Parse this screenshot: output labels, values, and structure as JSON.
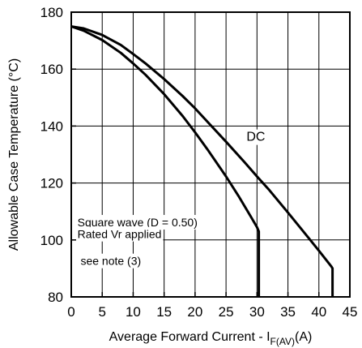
{
  "chart_data": {
    "type": "line",
    "xlabel": "Average Forward Current - I",
    "xlabel_sub": "F(AV)",
    "xlabel_unit": "(A)",
    "ylabel": "Allowable Case Temperature (°C)",
    "xlim": [
      0,
      45
    ],
    "ylim": [
      80,
      180
    ],
    "xticks": [
      "0",
      "5",
      "10",
      "15",
      "20",
      "25",
      "30",
      "35",
      "40",
      "45"
    ],
    "yticks": [
      "80",
      "100",
      "120",
      "140",
      "160",
      "180"
    ],
    "grid": true,
    "series": [
      {
        "name": "DC",
        "color": "#000000",
        "points": [
          [
            0,
            175
          ],
          [
            2,
            174.3
          ],
          [
            5,
            172
          ],
          [
            8,
            168.5
          ],
          [
            10,
            165.3
          ],
          [
            12,
            162
          ],
          [
            15,
            156.5
          ],
          [
            18,
            150.5
          ],
          [
            20,
            146.2
          ],
          [
            22,
            141.5
          ],
          [
            25,
            134.5
          ],
          [
            28,
            127.3
          ],
          [
            30,
            122.3
          ],
          [
            32,
            117.5
          ],
          [
            35,
            109.6
          ],
          [
            38,
            101.6
          ],
          [
            40,
            96.2
          ],
          [
            42,
            90.7
          ],
          [
            42.2,
            90
          ],
          [
            42.2,
            80
          ]
        ]
      },
      {
        "name": "",
        "color": "#000000",
        "points": [
          [
            0,
            175
          ],
          [
            2,
            173.5
          ],
          [
            5,
            170.2
          ],
          [
            8,
            165.7
          ],
          [
            10,
            162
          ],
          [
            12,
            158
          ],
          [
            15,
            151.2
          ],
          [
            18,
            143.5
          ],
          [
            20,
            137.8
          ],
          [
            22,
            131.8
          ],
          [
            25,
            122.3
          ],
          [
            27,
            115.5
          ],
          [
            29,
            108.2
          ],
          [
            30,
            104.5
          ],
          [
            30.3,
            103
          ],
          [
            30.3,
            80
          ]
        ]
      }
    ],
    "annotations": [
      {
        "text": "Square wave (D = 0.50)",
        "x": 1,
        "y": 104.8
      },
      {
        "text": "Rated Vr  applied",
        "x": 1,
        "y": 100.6
      },
      {
        "text": "see note (3)",
        "x": 1.5,
        "y": 91.2
      }
    ],
    "curve_labels": [
      {
        "text": "DC",
        "x": 28.3,
        "y": 134.8
      }
    ]
  }
}
